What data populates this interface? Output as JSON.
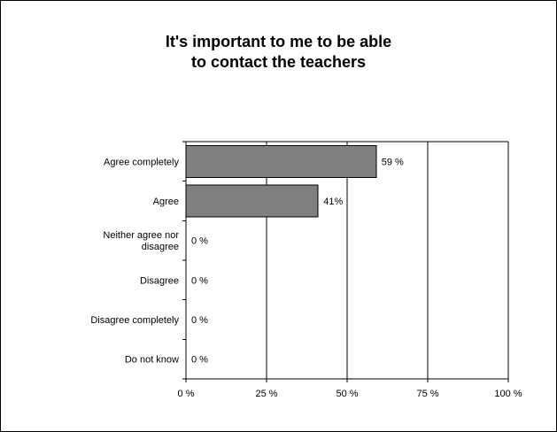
{
  "chart_data": {
    "type": "bar",
    "orientation": "horizontal",
    "title_lines": [
      "It's important to me to be able",
      "to contact the teachers"
    ],
    "categories": [
      [
        "Agree completely"
      ],
      [
        "Agree"
      ],
      [
        "Neither agree nor",
        "disagree"
      ],
      [
        "Disagree"
      ],
      [
        "Disagree completely"
      ],
      [
        "Do not know"
      ]
    ],
    "values": [
      59,
      41,
      0,
      0,
      0,
      0
    ],
    "data_labels": [
      "59 %",
      "41%",
      "0 %",
      "0 %",
      "0 %",
      "0 %"
    ],
    "x_ticks": [
      0,
      25,
      50,
      75,
      100
    ],
    "x_tick_labels": [
      "0 %",
      "25 %",
      "50 %",
      "75 %",
      "100 %"
    ],
    "xlim": [
      0,
      100
    ],
    "grid": "vertical",
    "bar_color": "#808080",
    "bar_border_color": "#000000"
  }
}
